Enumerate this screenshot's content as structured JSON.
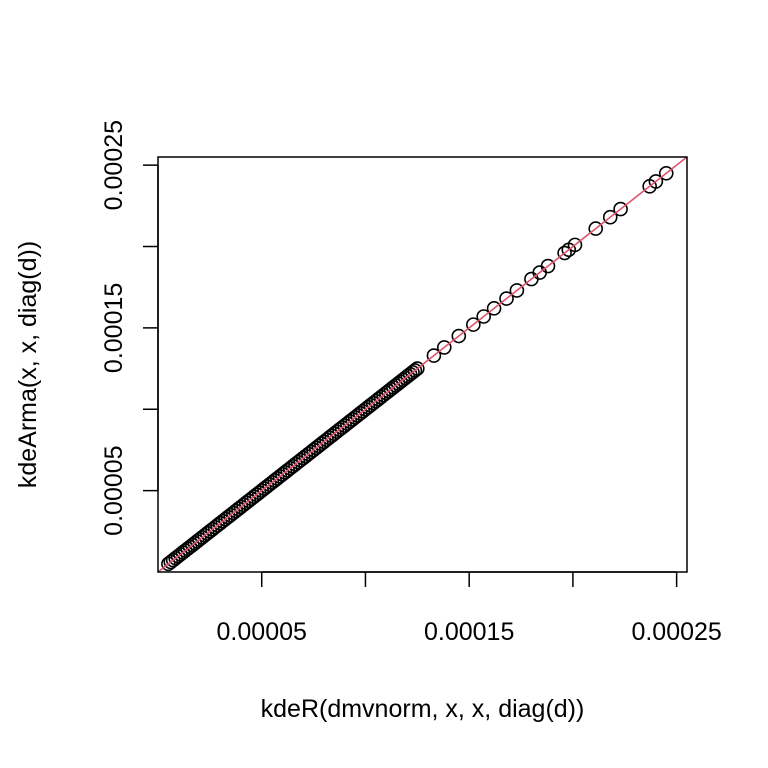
{
  "chart_data": {
    "type": "scatter",
    "title": "",
    "xlabel": "kdeR(dmvnorm, x, x, diag(d))",
    "ylabel": "kdeArma(x, x, diag(d))",
    "xlim": [
      0.0,
      0.000255
    ],
    "ylim": [
      0.0,
      0.000255
    ],
    "x_ticks": [
      5e-05,
      0.0001,
      0.00015,
      0.0002,
      0.00025
    ],
    "x_tick_labels": [
      "0.00005",
      "",
      "0.00015",
      "",
      "0.00025"
    ],
    "y_ticks": [
      5e-05,
      0.0001,
      0.00015,
      0.0002,
      0.00025
    ],
    "y_tick_labels": [
      "0.00005",
      "",
      "0.00015",
      "",
      "0.00025"
    ],
    "grid": false,
    "marker": "open-circle",
    "point_color": "#000000",
    "reference_line": {
      "slope": 1,
      "intercept": 0,
      "color": "#DF536B"
    },
    "series": [
      {
        "points": [
          [
            5e-06,
            5e-06
          ],
          [
            1.2e-05,
            1.2e-05
          ],
          [
            2e-05,
            2e-05
          ],
          [
            3e-05,
            3e-05
          ],
          [
            4e-05,
            4e-05
          ],
          [
            5e-05,
            5e-05
          ],
          [
            6e-05,
            6e-05
          ],
          [
            7e-05,
            7e-05
          ],
          [
            8e-05,
            8e-05
          ],
          [
            9e-05,
            9e-05
          ],
          [
            0.0001,
            0.0001
          ],
          [
            0.00011,
            0.00011
          ],
          [
            0.000125,
            0.000125
          ],
          [
            0.000133,
            0.000133
          ],
          [
            0.000138,
            0.000138
          ],
          [
            0.000145,
            0.000145
          ],
          [
            0.000152,
            0.000152
          ],
          [
            0.000157,
            0.000157
          ],
          [
            0.000162,
            0.000162
          ],
          [
            0.000168,
            0.000168
          ],
          [
            0.000173,
            0.000173
          ],
          [
            0.00018,
            0.00018
          ],
          [
            0.000184,
            0.000184
          ],
          [
            0.000188,
            0.000188
          ],
          [
            0.000196,
            0.000196
          ],
          [
            0.000198,
            0.000198
          ],
          [
            0.000201,
            0.000201
          ],
          [
            0.000211,
            0.000211
          ],
          [
            0.000218,
            0.000218
          ],
          [
            0.000223,
            0.000223
          ],
          [
            0.000237,
            0.000237
          ],
          [
            0.00024,
            0.00024
          ],
          [
            0.000245,
            0.000245
          ]
        ]
      }
    ]
  }
}
